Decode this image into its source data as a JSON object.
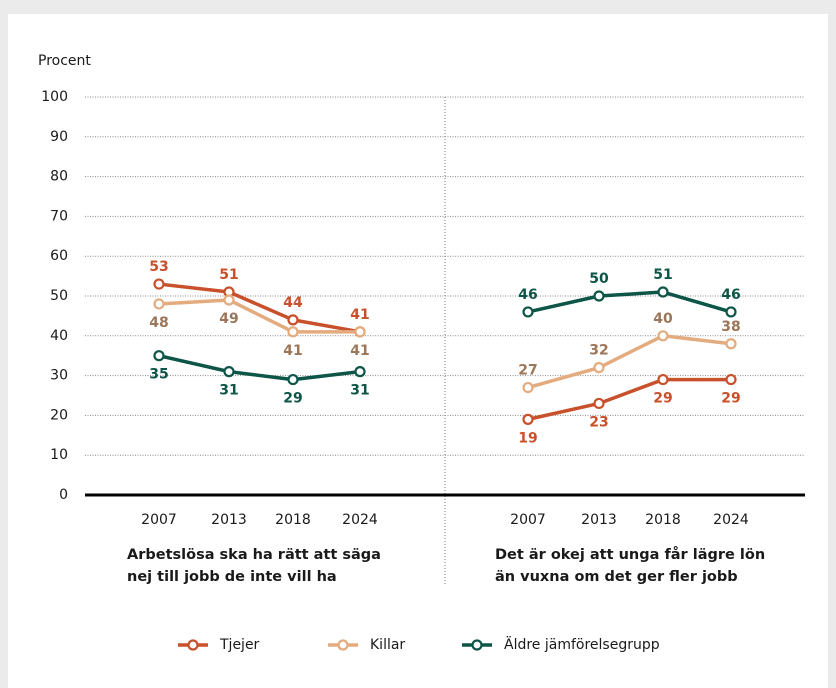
{
  "chart_data": [
    {
      "type": "line",
      "ylabel": "Procent",
      "subtitle": [
        "Arbetslösa ska ha rätt att säga",
        "nej till jobb de inte vill ha"
      ],
      "categories": [
        "2007",
        "2013",
        "2018",
        "2024"
      ],
      "ylim": [
        0,
        100
      ],
      "yticks": [
        0,
        10,
        20,
        30,
        40,
        50,
        60,
        70,
        80,
        90,
        100
      ],
      "grid": true,
      "legend": "bottom",
      "series": [
        {
          "name": "Tjejer",
          "color": "#c8502a",
          "label_color": "#c8502a",
          "label_position": "above",
          "values": [
            53,
            51,
            44,
            41
          ]
        },
        {
          "name": "Killar",
          "color": "#e3ab7e",
          "label_color": "#9b7659",
          "label_position": "below",
          "values": [
            48,
            49,
            41,
            41
          ]
        },
        {
          "name": "Äldre jämförelsegrupp",
          "color": "#0d5546",
          "label_color": "#0d5546",
          "label_position": "below",
          "values": [
            35,
            31,
            29,
            31
          ]
        }
      ]
    },
    {
      "type": "line",
      "subtitle": [
        "Det är okej att unga får lägre lön",
        "än vuxna om det ger fler jobb"
      ],
      "categories": [
        "2007",
        "2013",
        "2018",
        "2024"
      ],
      "ylim": [
        0,
        100
      ],
      "series": [
        {
          "name": "Tjejer",
          "color": "#c8502a",
          "label_color": "#c8502a",
          "label_position": "below",
          "values": [
            19,
            23,
            29,
            29
          ]
        },
        {
          "name": "Killar",
          "color": "#e3ab7e",
          "label_color": "#9b7659",
          "label_position": "above",
          "values": [
            27,
            32,
            40,
            38
          ]
        },
        {
          "name": "Äldre jämförelsegrupp",
          "color": "#0d5546",
          "label_color": "#0d5546",
          "label_position": "above",
          "values": [
            46,
            50,
            51,
            46
          ]
        }
      ]
    }
  ]
}
